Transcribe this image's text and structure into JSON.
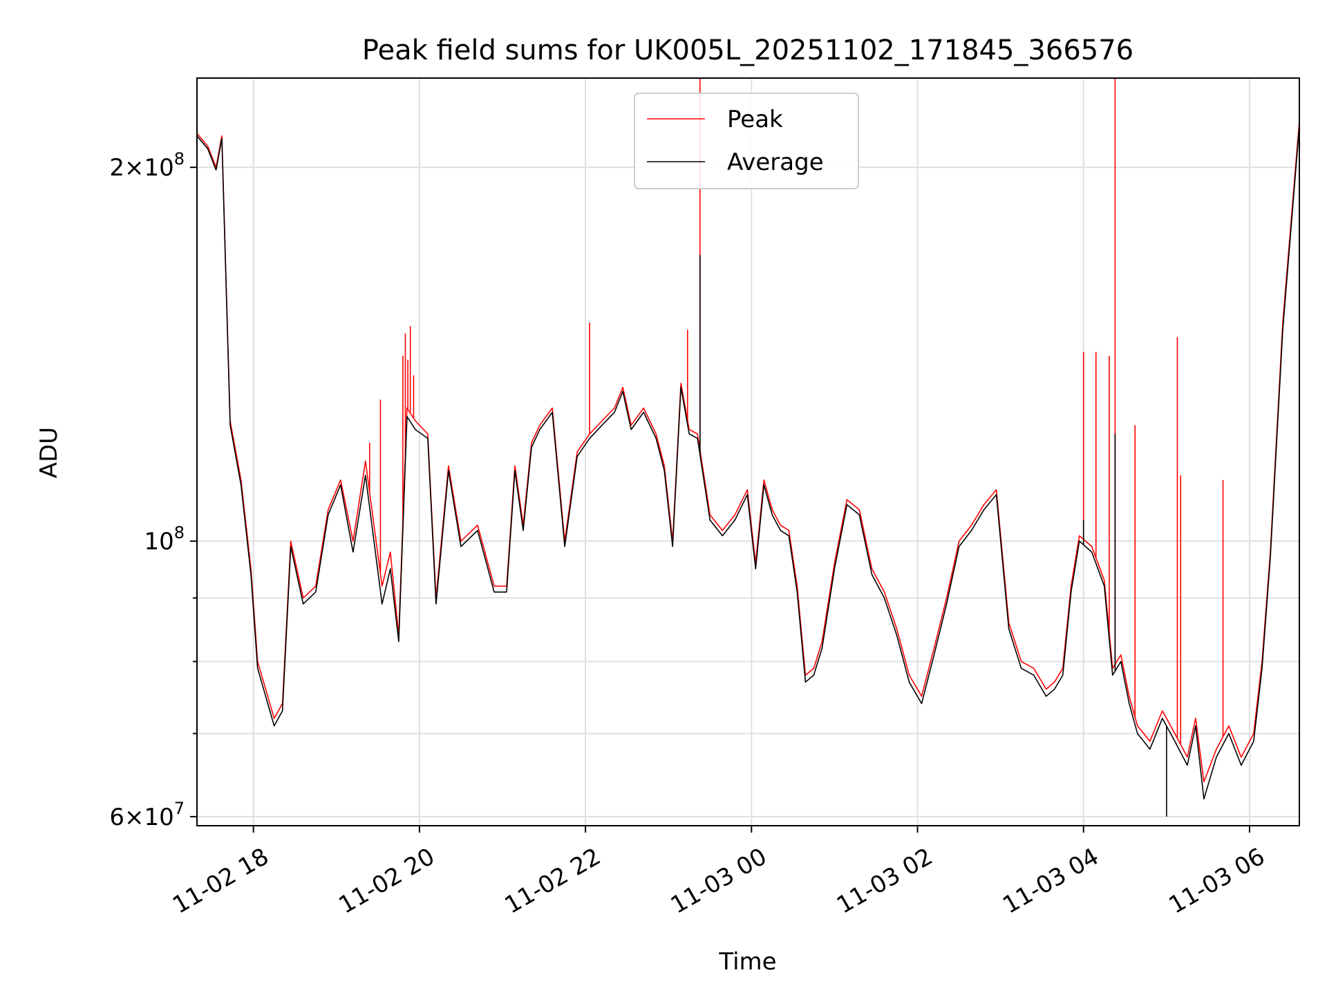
{
  "chart_data": {
    "type": "line",
    "title": "Peak field sums for UK005L_20251102_171845_366576",
    "xlabel": "Time",
    "ylabel": "ADU",
    "yscale": "log",
    "xlim": [
      17.32,
      30.6
    ],
    "ylim": [
      59000000,
      236000000
    ],
    "x_ticks": [
      {
        "value": 18,
        "label": "11-02 18"
      },
      {
        "value": 20,
        "label": "11-02 20"
      },
      {
        "value": 22,
        "label": "11-02 22"
      },
      {
        "value": 24,
        "label": "11-03 00"
      },
      {
        "value": 26,
        "label": "11-03 02"
      },
      {
        "value": 28,
        "label": "11-03 04"
      },
      {
        "value": 30,
        "label": "11-03 06"
      }
    ],
    "y_ticks": [
      {
        "value": 60000000,
        "base": "6×10",
        "exp": "7"
      },
      {
        "value": 100000000,
        "base": "10",
        "exp": "8"
      },
      {
        "value": 200000000,
        "base": "2×10",
        "exp": "8"
      }
    ],
    "y_minor_ticks": [
      70000000,
      80000000,
      90000000
    ],
    "grid": true,
    "legend_position": "top-center",
    "series": [
      {
        "name": "Peak",
        "color": "#ff0000",
        "x": [
          17.32,
          17.45,
          17.55,
          17.62,
          17.72,
          17.85,
          17.97,
          18.05,
          18.25,
          18.35,
          18.45,
          18.6,
          18.75,
          18.9,
          19.05,
          19.2,
          19.35,
          19.55,
          19.65,
          19.75,
          19.85,
          19.95,
          20.1,
          20.2,
          20.35,
          20.5,
          20.7,
          20.9,
          21.05,
          21.15,
          21.25,
          21.35,
          21.45,
          21.6,
          21.75,
          21.9,
          22.05,
          22.2,
          22.35,
          22.45,
          22.55,
          22.7,
          22.85,
          22.95,
          23.05,
          23.15,
          23.25,
          23.35,
          23.5,
          23.65,
          23.8,
          23.95,
          24.05,
          24.15,
          24.25,
          24.35,
          24.45,
          24.55,
          24.65,
          24.75,
          24.85,
          25.0,
          25.15,
          25.3,
          25.45,
          25.6,
          25.75,
          25.9,
          26.05,
          26.2,
          26.35,
          26.5,
          26.65,
          26.8,
          26.95,
          27.1,
          27.25,
          27.4,
          27.55,
          27.65,
          27.75,
          27.85,
          27.95,
          28.1,
          28.25,
          28.35,
          28.45,
          28.55,
          28.65,
          28.8,
          28.95,
          29.1,
          29.25,
          29.35,
          29.45,
          29.6,
          29.75,
          29.9,
          30.05,
          30.15,
          30.25,
          30.4,
          30.6
        ],
        "values": [
          213000000,
          208000000,
          200000000,
          212000000,
          125000000,
          112000000,
          95000000,
          80000000,
          72000000,
          74000000,
          100000000,
          90000000,
          92000000,
          106000000,
          112000000,
          100000000,
          116000000,
          92000000,
          98000000,
          84000000,
          128000000,
          125000000,
          122000000,
          90000000,
          115000000,
          100000000,
          103000000,
          92000000,
          92000000,
          115000000,
          103000000,
          120000000,
          124000000,
          128000000,
          100000000,
          118000000,
          122000000,
          125000000,
          128000000,
          133000000,
          124000000,
          128000000,
          122000000,
          115000000,
          100000000,
          134000000,
          123000000,
          122000000,
          105000000,
          102000000,
          105000000,
          110000000,
          96000000,
          112000000,
          106000000,
          103000000,
          102000000,
          92000000,
          78000000,
          79000000,
          83000000,
          96000000,
          108000000,
          106000000,
          95000000,
          91000000,
          85000000,
          78000000,
          75000000,
          82000000,
          90000000,
          100000000,
          103000000,
          107000000,
          110000000,
          86000000,
          80000000,
          79000000,
          76000000,
          77000000,
          79000000,
          92000000,
          101000000,
          99000000,
          93000000,
          79000000,
          81000000,
          75000000,
          71000000,
          69000000,
          73000000,
          70000000,
          67000000,
          72000000,
          64000000,
          68000000,
          71000000,
          67000000,
          70000000,
          80000000,
          98000000,
          150000000,
          218000000
        ],
        "spikes": [
          {
            "x": 19.4,
            "value": 120000000
          },
          {
            "x": 19.53,
            "value": 130000000
          },
          {
            "x": 19.8,
            "value": 141000000
          },
          {
            "x": 19.83,
            "value": 147000000
          },
          {
            "x": 19.86,
            "value": 140000000
          },
          {
            "x": 19.89,
            "value": 149000000
          },
          {
            "x": 19.93,
            "value": 136000000
          },
          {
            "x": 22.05,
            "value": 150000000
          },
          {
            "x": 23.23,
            "value": 148000000
          },
          {
            "x": 23.38,
            "value": 236000000
          },
          {
            "x": 28.0,
            "value": 142000000
          },
          {
            "x": 28.15,
            "value": 142000000
          },
          {
            "x": 28.31,
            "value": 141000000
          },
          {
            "x": 28.38,
            "value": 236000000
          },
          {
            "x": 28.62,
            "value": 124000000
          },
          {
            "x": 29.13,
            "value": 146000000
          },
          {
            "x": 29.17,
            "value": 113000000
          },
          {
            "x": 29.68,
            "value": 112000000
          }
        ]
      },
      {
        "name": "Average",
        "color": "#000000",
        "x": [
          17.32,
          17.45,
          17.55,
          17.62,
          17.72,
          17.85,
          17.97,
          18.05,
          18.25,
          18.35,
          18.45,
          18.6,
          18.75,
          18.9,
          19.05,
          19.2,
          19.35,
          19.55,
          19.65,
          19.75,
          19.85,
          19.95,
          20.1,
          20.2,
          20.35,
          20.5,
          20.7,
          20.9,
          21.05,
          21.15,
          21.25,
          21.35,
          21.45,
          21.6,
          21.75,
          21.9,
          22.05,
          22.2,
          22.35,
          22.45,
          22.55,
          22.7,
          22.85,
          22.95,
          23.05,
          23.15,
          23.25,
          23.35,
          23.5,
          23.65,
          23.8,
          23.95,
          24.05,
          24.15,
          24.25,
          24.35,
          24.45,
          24.55,
          24.65,
          24.75,
          24.85,
          25.0,
          25.15,
          25.3,
          25.45,
          25.6,
          25.75,
          25.9,
          26.05,
          26.2,
          26.35,
          26.5,
          26.65,
          26.8,
          26.95,
          27.1,
          27.25,
          27.4,
          27.55,
          27.65,
          27.75,
          27.85,
          27.95,
          28.1,
          28.25,
          28.35,
          28.45,
          28.55,
          28.65,
          28.8,
          28.95,
          29.1,
          29.25,
          29.35,
          29.45,
          29.6,
          29.75,
          29.9,
          30.05,
          30.15,
          30.25,
          30.4,
          30.6
        ],
        "values": [
          212000000,
          207000000,
          199000000,
          211000000,
          124000000,
          111000000,
          94000000,
          79000000,
          71000000,
          73000000,
          99000000,
          89000000,
          91000000,
          105000000,
          111000000,
          98000000,
          113000000,
          89000000,
          95000000,
          83000000,
          126000000,
          123000000,
          121000000,
          89000000,
          114000000,
          99000000,
          102000000,
          91000000,
          91000000,
          114000000,
          102000000,
          119000000,
          123000000,
          127000000,
          99000000,
          117000000,
          121000000,
          124000000,
          127000000,
          132000000,
          123000000,
          127000000,
          121000000,
          114000000,
          99000000,
          133000000,
          122000000,
          121000000,
          104000000,
          101000000,
          104000000,
          109000000,
          95000000,
          111000000,
          105000000,
          102000000,
          101000000,
          91000000,
          77000000,
          78000000,
          82000000,
          95000000,
          107000000,
          105000000,
          94000000,
          90000000,
          84000000,
          77000000,
          74000000,
          81000000,
          89000000,
          99000000,
          102000000,
          106000000,
          109000000,
          85000000,
          79000000,
          78000000,
          75000000,
          76000000,
          78000000,
          91000000,
          100000000,
          98000000,
          92000000,
          78000000,
          80000000,
          74000000,
          70000000,
          68000000,
          72000000,
          69000000,
          66000000,
          71000000,
          62000000,
          67000000,
          70000000,
          66000000,
          69000000,
          79000000,
          97000000,
          148000000,
          216000000
        ],
        "spikes": [
          {
            "x": 23.38,
            "value": 170000000
          },
          {
            "x": 28.0,
            "value": 104000000
          },
          {
            "x": 28.38,
            "value": 122000000
          },
          {
            "x": 29.0,
            "value": 60000000
          }
        ]
      }
    ]
  }
}
